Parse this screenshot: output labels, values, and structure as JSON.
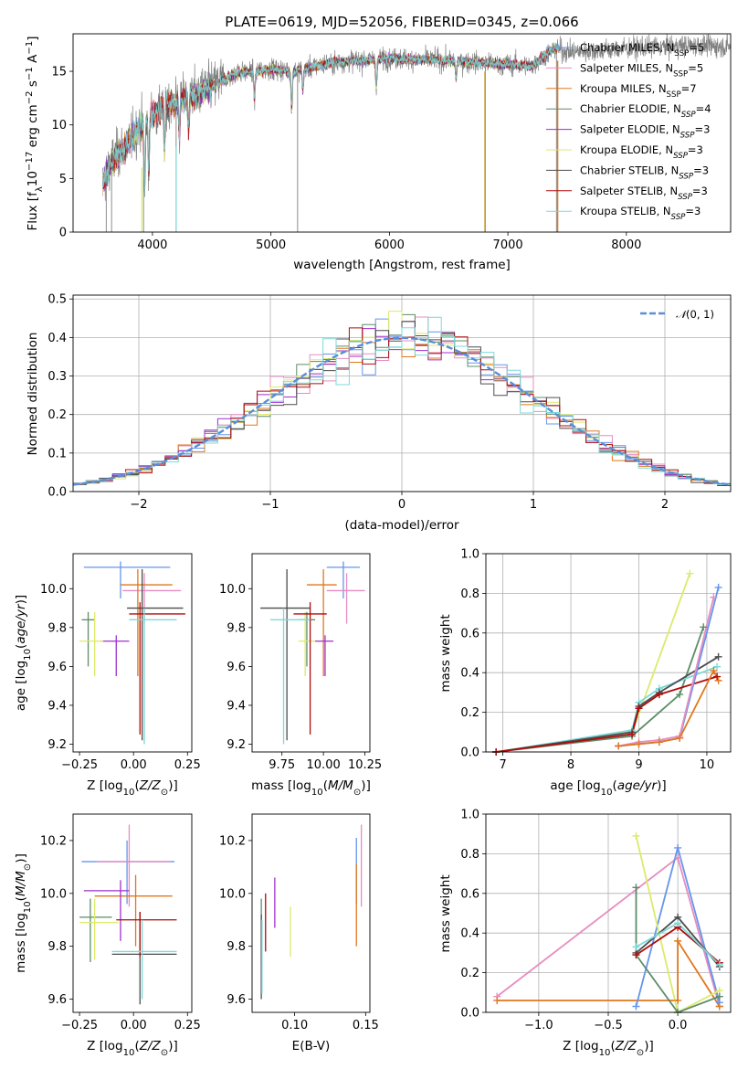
{
  "title": "PLATE=0619, MJD=52056, FIBERID=0345, z=0.066",
  "colors": {
    "data": "#808080",
    "chabrier_miles": "#6495ed",
    "salpeter_miles": "#e88cc1",
    "kroupa_miles": "#e0781d",
    "chabrier_elodie": "#5e8c68",
    "salpeter_elodie": "#9f2fcc",
    "kroupa_elodie": "#dcea6a",
    "chabrier_stelib": "#4d4d4d",
    "salpeter_stelib": "#b00b0b",
    "kroupa_stelib": "#7dd9d9",
    "gaussian": "#5a8ed8",
    "grid": "#b0b0b0"
  },
  "chart_data": [
    {
      "id": "spectrum",
      "type": "line",
      "xlabel": "wavelength [Angstrom, rest frame]",
      "ylabel": "Flux [f_λ10^-17 erg cm^-2 s^-1 A^-1]",
      "xlim": [
        3330,
        8880
      ],
      "ylim": [
        0,
        18.5
      ],
      "xticks": [
        4000,
        5000,
        6000,
        7000,
        8000
      ],
      "yticks": [
        0,
        5,
        10,
        15
      ],
      "legend_position": "right",
      "legend": [
        {
          "imf": "Chabrier",
          "lib": "MILES",
          "nssp": "5",
          "style": "plain"
        },
        {
          "imf": "Salpeter",
          "lib": "MILES",
          "nssp": "5",
          "style": "plain"
        },
        {
          "imf": "Kroupa",
          "lib": "MILES",
          "nssp": "7",
          "style": "plain"
        },
        {
          "imf": "Chabrier",
          "lib": "ELODIE",
          "nssp": "4",
          "style": "italic"
        },
        {
          "imf": "Salpeter",
          "lib": "ELODIE",
          "nssp": "3",
          "style": "italic"
        },
        {
          "imf": "Kroupa",
          "lib": "ELODIE",
          "nssp": "3",
          "style": "italic"
        },
        {
          "imf": "Chabrier",
          "lib": "STELIB",
          "nssp": "3",
          "style": "italic"
        },
        {
          "imf": "Salpeter",
          "lib": "STELIB",
          "nssp": "3",
          "style": "italic"
        },
        {
          "imf": "Kroupa",
          "lib": "STELIB",
          "nssp": "3",
          "style": "italic"
        }
      ],
      "continuum_knots": [
        [
          3580,
          4.5
        ],
        [
          3650,
          6.5
        ],
        [
          3800,
          8.5
        ],
        [
          3950,
          10.5
        ],
        [
          4100,
          11.8
        ],
        [
          4300,
          12.5
        ],
        [
          4500,
          13.6
        ],
        [
          4700,
          14.8
        ],
        [
          5000,
          15.2
        ],
        [
          5200,
          15.0
        ],
        [
          5500,
          15.8
        ],
        [
          6000,
          16.2
        ],
        [
          6500,
          16.0
        ],
        [
          6900,
          15.7
        ],
        [
          7200,
          15.5
        ],
        [
          7400,
          17.2
        ],
        [
          7500,
          16.8
        ],
        [
          8000,
          17.1
        ],
        [
          8500,
          17.4
        ],
        [
          8880,
          17.3
        ]
      ],
      "model_range": [
        3580,
        7430
      ]
    },
    {
      "id": "residuals",
      "type": "histogram",
      "xlabel": "(data-model)/error",
      "ylabel": "Normed distribution",
      "xlim": [
        -2.5,
        2.5
      ],
      "ylim": [
        0,
        0.51
      ],
      "xticks": [
        -2,
        -1,
        0,
        1,
        2
      ],
      "yticks": [
        0.0,
        0.1,
        0.2,
        0.3,
        0.4,
        0.5
      ],
      "legend": "N(0,1)",
      "bin_width": 0.1
    },
    {
      "id": "age_vs_Z",
      "type": "errorbar",
      "xlabel": "Z [log10(Z/Z⊙)]",
      "ylabel": "age [log10(age/yr)]",
      "xlim": [
        -0.28,
        0.27
      ],
      "ylim": [
        9.16,
        10.18
      ],
      "xticks": [
        -0.25,
        0.0,
        0.25
      ],
      "yticks": [
        9.2,
        9.4,
        9.6,
        9.8,
        10.0
      ],
      "points": [
        {
          "model": "chabrier_miles",
          "x": -0.06,
          "y": 10.11,
          "xlo": -0.23,
          "xhi": 0.17,
          "ylo": 9.95,
          "yhi": 10.14
        },
        {
          "model": "salpeter_miles",
          "x": 0.05,
          "y": 9.99,
          "xlo": -0.05,
          "xhi": 0.22,
          "ylo": 9.82,
          "yhi": 10.08
        },
        {
          "model": "kroupa_miles",
          "x": 0.02,
          "y": 10.02,
          "xlo": -0.06,
          "xhi": 0.18,
          "ylo": 9.55,
          "yhi": 10.1
        },
        {
          "model": "chabrier_elodie",
          "x": -0.21,
          "y": 9.84,
          "xlo": -0.24,
          "xhi": -0.18,
          "ylo": 9.6,
          "yhi": 9.88
        },
        {
          "model": "salpeter_elodie",
          "x": -0.08,
          "y": 9.73,
          "xlo": -0.15,
          "xhi": -0.02,
          "ylo": 9.55,
          "yhi": 9.76
        },
        {
          "model": "kroupa_elodie",
          "x": -0.18,
          "y": 9.73,
          "xlo": -0.25,
          "xhi": -0.14,
          "ylo": 9.55,
          "yhi": 9.88
        },
        {
          "model": "chabrier_stelib",
          "x": 0.04,
          "y": 9.9,
          "xlo": -0.03,
          "xhi": 0.23,
          "ylo": 9.22,
          "yhi": 10.1
        },
        {
          "model": "salpeter_stelib",
          "x": 0.03,
          "y": 9.87,
          "xlo": -0.02,
          "xhi": 0.24,
          "ylo": 9.25,
          "yhi": 9.93
        },
        {
          "model": "kroupa_stelib",
          "x": 0.05,
          "y": 9.84,
          "xlo": -0.02,
          "xhi": 0.2,
          "ylo": 9.2,
          "yhi": 9.9
        }
      ]
    },
    {
      "id": "age_vs_mass",
      "type": "errorbar",
      "xlabel": "mass [log10(M/M⊙)]",
      "xlim": [
        9.57,
        10.28
      ],
      "ylim": [
        9.16,
        10.18
      ],
      "xticks": [
        9.75,
        10.0,
        10.25
      ],
      "yticks": [
        9.2,
        9.4,
        9.6,
        9.8,
        10.0
      ],
      "points": [
        {
          "model": "chabrier_miles",
          "x": 10.12,
          "y": 10.11,
          "xlo": 10.02,
          "xhi": 10.22,
          "ylo": 9.95,
          "yhi": 10.14
        },
        {
          "model": "salpeter_miles",
          "x": 10.14,
          "y": 9.99,
          "xlo": 10.02,
          "xhi": 10.25,
          "ylo": 9.82,
          "yhi": 10.08
        },
        {
          "model": "kroupa_miles",
          "x": 10.0,
          "y": 10.02,
          "xlo": 9.9,
          "xhi": 10.08,
          "ylo": 9.55,
          "yhi": 10.1
        },
        {
          "model": "chabrier_elodie",
          "x": 9.9,
          "y": 9.84,
          "xlo": 9.85,
          "xhi": 9.95,
          "ylo": 9.6,
          "yhi": 9.88
        },
        {
          "model": "salpeter_elodie",
          "x": 10.01,
          "y": 9.73,
          "xlo": 9.95,
          "xhi": 10.06,
          "ylo": 9.55,
          "yhi": 9.76
        },
        {
          "model": "kroupa_elodie",
          "x": 9.89,
          "y": 9.73,
          "xlo": 9.85,
          "xhi": 9.95,
          "ylo": 9.55,
          "yhi": 9.88
        },
        {
          "model": "chabrier_stelib",
          "x": 9.78,
          "y": 9.9,
          "xlo": 9.62,
          "xhi": 9.92,
          "ylo": 9.22,
          "yhi": 10.1
        },
        {
          "model": "salpeter_stelib",
          "x": 9.92,
          "y": 9.87,
          "xlo": 9.82,
          "xhi": 10.02,
          "ylo": 9.25,
          "yhi": 9.93
        },
        {
          "model": "kroupa_stelib",
          "x": 9.76,
          "y": 9.84,
          "xlo": 9.68,
          "xhi": 9.92,
          "ylo": 9.2,
          "yhi": 9.9
        }
      ]
    },
    {
      "id": "weight_vs_age",
      "type": "line",
      "xlabel": "age [log10(age/yr)]",
      "ylabel": "mass weight",
      "xlim": [
        6.75,
        10.35
      ],
      "ylim": [
        0,
        1.0
      ],
      "xticks": [
        7,
        8,
        9,
        10
      ],
      "yticks": [
        0.0,
        0.2,
        0.4,
        0.6,
        0.8,
        1.0
      ],
      "series": [
        {
          "model": "kroupa_elodie",
          "points": [
            [
              6.9,
              0.0
            ],
            [
              8.9,
              0.1
            ],
            [
              9.75,
              0.9
            ]
          ]
        },
        {
          "model": "chabrier_elodie",
          "points": [
            [
              6.9,
              0.0
            ],
            [
              8.9,
              0.08
            ],
            [
              9.6,
              0.29
            ],
            [
              9.95,
              0.63
            ]
          ]
        },
        {
          "model": "kroupa_stelib",
          "points": [
            [
              6.9,
              0.0
            ],
            [
              8.9,
              0.11
            ],
            [
              9.0,
              0.25
            ],
            [
              9.3,
              0.32
            ],
            [
              10.15,
              0.43
            ]
          ]
        },
        {
          "model": "chabrier_stelib",
          "points": [
            [
              6.9,
              0.0
            ],
            [
              8.9,
              0.1
            ],
            [
              9.0,
              0.23
            ],
            [
              9.3,
              0.3
            ],
            [
              10.17,
              0.48
            ]
          ]
        },
        {
          "model": "salpeter_stelib",
          "points": [
            [
              6.9,
              0.0
            ],
            [
              8.9,
              0.09
            ],
            [
              9.0,
              0.22
            ],
            [
              9.3,
              0.29
            ],
            [
              10.15,
              0.38
            ]
          ]
        },
        {
          "model": "chabrier_miles",
          "points": [
            [
              8.7,
              0.03
            ],
            [
              9.0,
              0.04
            ],
            [
              9.3,
              0.05
            ],
            [
              9.6,
              0.07
            ],
            [
              10.17,
              0.83
            ]
          ]
        },
        {
          "model": "salpeter_miles",
          "points": [
            [
              8.7,
              0.03
            ],
            [
              9.0,
              0.05
            ],
            [
              9.3,
              0.06
            ],
            [
              9.6,
              0.08
            ],
            [
              10.1,
              0.78
            ]
          ]
        },
        {
          "model": "kroupa_miles",
          "points": [
            [
              8.7,
              0.03
            ],
            [
              9.0,
              0.04
            ],
            [
              9.3,
              0.05
            ],
            [
              9.6,
              0.07
            ],
            [
              10.1,
              0.41
            ],
            [
              10.17,
              0.36
            ]
          ]
        }
      ]
    },
    {
      "id": "mass_vs_Z",
      "type": "errorbar",
      "xlabel": "Z [log10(Z/Z⊙)]",
      "ylabel": "mass [log10(M/M⊙)]",
      "xlim": [
        -0.28,
        0.27
      ],
      "ylim": [
        9.55,
        10.3
      ],
      "xticks": [
        -0.25,
        0.0,
        0.25
      ],
      "yticks": [
        9.6,
        9.8,
        10.0,
        10.2
      ],
      "points": [
        {
          "model": "chabrier_miles",
          "x": -0.03,
          "y": 10.12,
          "xlo": -0.24,
          "xhi": 0.19,
          "ylo": 9.96,
          "yhi": 10.2
        },
        {
          "model": "salpeter_miles",
          "x": -0.02,
          "y": 10.12,
          "xlo": -0.17,
          "xhi": 0.17,
          "ylo": 9.95,
          "yhi": 10.26
        },
        {
          "model": "kroupa_miles",
          "x": 0.01,
          "y": 9.99,
          "xlo": -0.18,
          "xhi": 0.18,
          "ylo": 9.8,
          "yhi": 10.07
        },
        {
          "model": "chabrier_elodie",
          "x": -0.2,
          "y": 9.91,
          "xlo": -0.25,
          "xhi": -0.1,
          "ylo": 9.74,
          "yhi": 9.98
        },
        {
          "model": "salpeter_elodie",
          "x": -0.06,
          "y": 10.01,
          "xlo": -0.23,
          "xhi": -0.02,
          "ylo": 9.82,
          "yhi": 10.05
        },
        {
          "model": "kroupa_elodie",
          "x": -0.18,
          "y": 9.89,
          "xlo": -0.25,
          "xhi": -0.07,
          "ylo": 9.75,
          "yhi": 9.98
        },
        {
          "model": "chabrier_stelib",
          "x": 0.03,
          "y": 9.77,
          "xlo": -0.1,
          "xhi": 0.2,
          "ylo": 9.58,
          "yhi": 9.93
        },
        {
          "model": "salpeter_stelib",
          "x": 0.03,
          "y": 9.9,
          "xlo": -0.08,
          "xhi": 0.2,
          "ylo": 9.76,
          "yhi": 9.93
        },
        {
          "model": "kroupa_stelib",
          "x": 0.04,
          "y": 9.78,
          "xlo": -0.1,
          "xhi": 0.2,
          "ylo": 9.6,
          "yhi": 9.9
        }
      ]
    },
    {
      "id": "mass_vs_ebv",
      "type": "errorbar",
      "xlabel": "E(B-V)",
      "xlim": [
        0.07,
        0.153
      ],
      "ylim": [
        9.55,
        10.3
      ],
      "xticks": [
        0.1,
        0.15
      ],
      "yticks": [
        9.6,
        9.8,
        10.0,
        10.2
      ],
      "points": [
        {
          "model": "chabrier_miles",
          "x": 0.1435,
          "y": 10.12,
          "ylo": 9.96,
          "yhi": 10.21
        },
        {
          "model": "salpeter_miles",
          "x": 0.147,
          "y": 10.12,
          "ylo": 9.95,
          "yhi": 10.26
        },
        {
          "model": "kroupa_miles",
          "x": 0.1435,
          "y": 9.99,
          "ylo": 9.8,
          "yhi": 10.11
        },
        {
          "model": "chabrier_elodie",
          "x": 0.0765,
          "y": 9.91,
          "ylo": 9.74,
          "yhi": 9.98
        },
        {
          "model": "salpeter_elodie",
          "x": 0.086,
          "y": 10.01,
          "ylo": 9.87,
          "yhi": 10.06
        },
        {
          "model": "kroupa_elodie",
          "x": 0.097,
          "y": 9.89,
          "ylo": 9.76,
          "yhi": 9.95
        },
        {
          "model": "chabrier_stelib",
          "x": 0.0765,
          "y": 9.77,
          "ylo": 9.6,
          "yhi": 9.92
        },
        {
          "model": "salpeter_stelib",
          "x": 0.0795,
          "y": 9.9,
          "ylo": 9.78,
          "yhi": 10.0
        },
        {
          "model": "kroupa_stelib",
          "x": 0.077,
          "y": 9.77,
          "ylo": 9.62,
          "yhi": 9.9
        }
      ]
    },
    {
      "id": "weight_vs_Z",
      "type": "line",
      "xlabel": "Z [log10(Z/Z⊙)]",
      "ylabel": "mass weight",
      "xlim": [
        -1.38,
        0.38
      ],
      "ylim": [
        0,
        1.0
      ],
      "xticks": [
        -1.0,
        -0.5,
        0.0
      ],
      "yticks": [
        0.0,
        0.2,
        0.4,
        0.6,
        0.8,
        1.0
      ],
      "series": [
        {
          "model": "salpeter_miles",
          "points": [
            [
              -1.3,
              0.08
            ],
            [
              0.0,
              0.78
            ],
            [
              0.3,
              0.03
            ]
          ]
        },
        {
          "model": "kroupa_miles",
          "points": [
            [
              -1.3,
              0.06
            ],
            [
              0.0,
              0.06
            ],
            [
              0.0,
              0.36
            ],
            [
              0.3,
              0.03
            ]
          ]
        },
        {
          "model": "chabrier_miles",
          "points": [
            [
              -0.3,
              0.03
            ],
            [
              0.0,
              0.83
            ],
            [
              0.3,
              0.05
            ]
          ]
        },
        {
          "model": "kroupa_elodie",
          "points": [
            [
              -0.3,
              0.89
            ],
            [
              0.0,
              0.0
            ],
            [
              0.3,
              0.11
            ]
          ]
        },
        {
          "model": "chabrier_elodie",
          "points": [
            [
              -0.3,
              0.63
            ],
            [
              -0.3,
              0.29
            ],
            [
              0.0,
              0.0
            ],
            [
              0.3,
              0.08
            ]
          ]
        },
        {
          "model": "chabrier_stelib",
          "points": [
            [
              -0.3,
              0.3
            ],
            [
              0.0,
              0.48
            ],
            [
              0.3,
              0.23
            ]
          ]
        },
        {
          "model": "salpeter_stelib",
          "points": [
            [
              -0.3,
              0.29
            ],
            [
              0.0,
              0.43
            ],
            [
              0.3,
              0.25
            ]
          ]
        },
        {
          "model": "kroupa_stelib",
          "points": [
            [
              -0.3,
              0.33
            ],
            [
              0.0,
              0.45
            ],
            [
              0.3,
              0.24
            ]
          ]
        }
      ]
    }
  ]
}
